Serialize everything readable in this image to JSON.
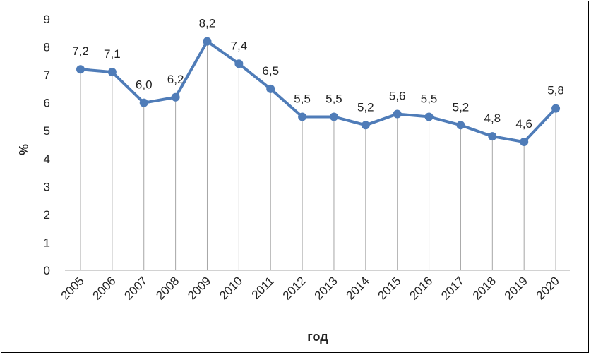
{
  "chart_data": {
    "type": "line",
    "xlabel": "год",
    "ylabel": "%",
    "ylim": [
      0,
      9
    ],
    "yticks": [
      "0",
      "1",
      "2",
      "3",
      "4",
      "5",
      "6",
      "7",
      "8",
      "9"
    ],
    "categories": [
      "2005",
      "2006",
      "2007",
      "2008",
      "2009",
      "2010",
      "2011",
      "2012",
      "2013",
      "2014",
      "2015",
      "2016",
      "2017",
      "2018",
      "2019",
      "2020"
    ],
    "values": [
      7.2,
      7.1,
      6.0,
      6.2,
      8.2,
      7.4,
      6.5,
      5.5,
      5.5,
      5.2,
      5.6,
      5.5,
      5.2,
      4.8,
      4.6,
      5.8
    ],
    "data_labels": [
      "7,2",
      "7,1",
      "6,0",
      "6,2",
      "8,2",
      "7,4",
      "6,5",
      "5,5",
      "5,5",
      "5,2",
      "5,6",
      "5,5",
      "5,2",
      "4,8",
      "4,6",
      "5,8"
    ],
    "line_color": "#4f7cb8",
    "drop_lines": true,
    "grid": false,
    "legend": "none"
  }
}
